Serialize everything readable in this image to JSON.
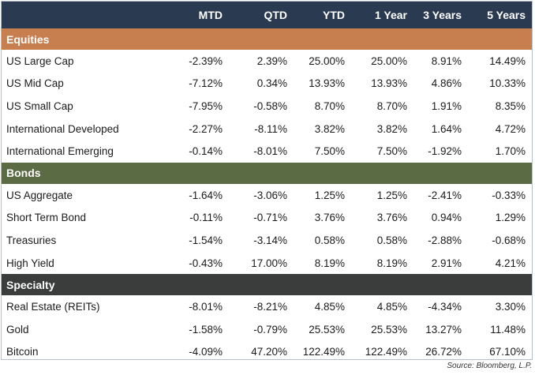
{
  "columns": [
    "MTD",
    "QTD",
    "YTD",
    "1 Year",
    "3 Years",
    "5 Years"
  ],
  "colors": {
    "header_bg": "#2a3a51",
    "equities_bg": "#c87f4f",
    "bonds_bg": "#5b6b44",
    "specialty_bg": "#3b3c3c",
    "frame_border": "#b8bec6"
  },
  "sections": [
    {
      "key": "equities",
      "title": "Equities",
      "rows": [
        {
          "name": "US Large Cap",
          "values": [
            "-2.39%",
            "2.39%",
            "25.00%",
            "25.00%",
            "8.91%",
            "14.49%"
          ]
        },
        {
          "name": "US Mid Cap",
          "values": [
            "-7.12%",
            "0.34%",
            "13.93%",
            "13.93%",
            "4.86%",
            "10.33%"
          ]
        },
        {
          "name": "US Small Cap",
          "values": [
            "-7.95%",
            "-0.58%",
            "8.70%",
            "8.70%",
            "1.91%",
            "8.35%"
          ]
        },
        {
          "name": "International Developed",
          "values": [
            "-2.27%",
            "-8.11%",
            "3.82%",
            "3.82%",
            "1.64%",
            "4.72%"
          ]
        },
        {
          "name": "International Emerging",
          "values": [
            "-0.14%",
            "-8.01%",
            "7.50%",
            "7.50%",
            "-1.92%",
            "1.70%"
          ]
        }
      ]
    },
    {
      "key": "bonds",
      "title": "Bonds",
      "rows": [
        {
          "name": "US Aggregate",
          "values": [
            "-1.64%",
            "-3.06%",
            "1.25%",
            "1.25%",
            "-2.41%",
            "-0.33%"
          ]
        },
        {
          "name": "Short Term Bond",
          "values": [
            "-0.11%",
            "-0.71%",
            "3.76%",
            "3.76%",
            "0.94%",
            "1.29%"
          ]
        },
        {
          "name": "Treasuries",
          "values": [
            "-1.54%",
            "-3.14%",
            "0.58%",
            "0.58%",
            "-2.88%",
            "-0.68%"
          ]
        },
        {
          "name": "High Yield",
          "values": [
            "-0.43%",
            "17.00%",
            "8.19%",
            "8.19%",
            "2.91%",
            "4.21%"
          ]
        }
      ]
    },
    {
      "key": "specialty",
      "title": "Specialty",
      "rows": [
        {
          "name": "Real Estate (REITs)",
          "values": [
            "-8.01%",
            "-8.21%",
            "4.85%",
            "4.85%",
            "-4.34%",
            "3.30%"
          ]
        },
        {
          "name": "Gold",
          "values": [
            "-1.58%",
            "-0.79%",
            "25.53%",
            "25.53%",
            "13.27%",
            "11.48%"
          ]
        },
        {
          "name": "Bitcoin",
          "values": [
            "-4.09%",
            "47.20%",
            "122.49%",
            "122.49%",
            "26.72%",
            "67.10%"
          ]
        }
      ]
    }
  ],
  "source": "Source: Bloomberg, L.P."
}
